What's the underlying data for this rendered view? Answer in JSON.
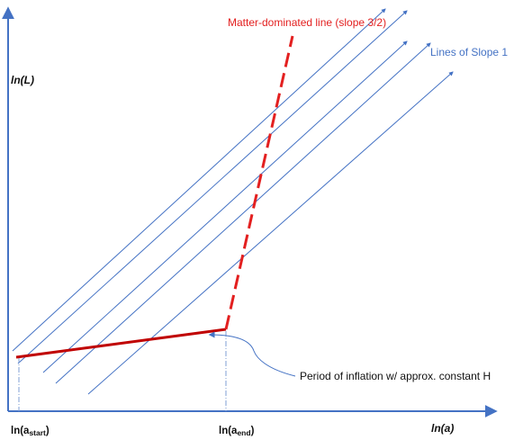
{
  "axes": {
    "y_label": "ln(L)",
    "x_label": "ln(a)",
    "x_tick_start_prefix": "ln(a",
    "x_tick_start_sub": "start",
    "x_tick_start_suffix": ")",
    "x_tick_end_prefix": "ln(a",
    "x_tick_end_sub": "end",
    "x_tick_end_suffix": ")"
  },
  "annotations": {
    "matter_line_label": "Matter-dominated line (slope 3/2)",
    "slope_one_label": "Lines of Slope 1",
    "inflation_label": "Period of inflation w/ approx. constant H"
  },
  "colors": {
    "axis": "#4472c4",
    "slope_one_lines": "#4472c4",
    "inflation_line": "#c00000",
    "matter_line": "#e32020",
    "matter_label": "#e32020",
    "slope_label": "#4472c4",
    "callout": "#4472c4"
  }
}
